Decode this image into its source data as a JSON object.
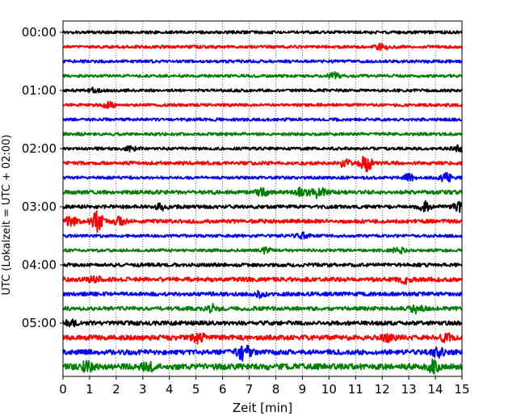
{
  "chart_data": {
    "type": "line",
    "title": "",
    "xlabel": "Zeit  [min]",
    "ylabel": "UTC (Lokalzeit = UTC + 02:00)",
    "xlim": [
      0,
      15
    ],
    "xticks": [
      0,
      1,
      2,
      3,
      4,
      5,
      6,
      7,
      8,
      9,
      10,
      11,
      12,
      13,
      14,
      15
    ],
    "ytick_labels": [
      "00:00",
      "01:00",
      "02:00",
      "03:00",
      "04:00",
      "05:00"
    ],
    "grid": "vertical dotted",
    "line_colors": [
      "#000000",
      "#ff0000",
      "#0000ff",
      "#008000"
    ],
    "series": [
      {
        "start": "00:00",
        "color": "#000000",
        "base_amplitude": 0.15,
        "events": []
      },
      {
        "start": "00:15",
        "color": "#ff0000",
        "base_amplitude": 0.15,
        "events": [
          [
            12.0,
            0.3
          ]
        ]
      },
      {
        "start": "00:30",
        "color": "#0000ff",
        "base_amplitude": 0.15,
        "events": []
      },
      {
        "start": "00:45",
        "color": "#008000",
        "base_amplitude": 0.15,
        "events": [
          [
            10.2,
            0.3
          ]
        ]
      },
      {
        "start": "01:00",
        "color": "#000000",
        "base_amplitude": 0.15,
        "events": [
          [
            1.2,
            0.25
          ]
        ]
      },
      {
        "start": "01:15",
        "color": "#ff0000",
        "base_amplitude": 0.15,
        "events": [
          [
            1.7,
            0.3
          ]
        ]
      },
      {
        "start": "01:30",
        "color": "#0000ff",
        "base_amplitude": 0.15,
        "events": []
      },
      {
        "start": "01:45",
        "color": "#008000",
        "base_amplitude": 0.15,
        "events": []
      },
      {
        "start": "02:00",
        "color": "#000000",
        "base_amplitude": 0.15,
        "events": [
          [
            2.6,
            0.25
          ],
          [
            14.9,
            0.3
          ]
        ]
      },
      {
        "start": "02:15",
        "color": "#ff0000",
        "base_amplitude": 0.18,
        "events": [
          [
            10.6,
            0.35
          ],
          [
            11.4,
            0.75
          ]
        ]
      },
      {
        "start": "02:30",
        "color": "#0000ff",
        "base_amplitude": 0.15,
        "events": [
          [
            13.0,
            0.3
          ],
          [
            14.4,
            0.4
          ]
        ]
      },
      {
        "start": "02:45",
        "color": "#008000",
        "base_amplitude": 0.2,
        "events": [
          [
            7.5,
            0.35
          ],
          [
            9.0,
            0.45
          ],
          [
            9.6,
            0.55
          ]
        ]
      },
      {
        "start": "03:00",
        "color": "#000000",
        "base_amplitude": 0.18,
        "events": [
          [
            3.7,
            0.25
          ],
          [
            13.6,
            0.45
          ],
          [
            14.9,
            0.45
          ]
        ]
      },
      {
        "start": "03:15",
        "color": "#ff0000",
        "base_amplitude": 0.2,
        "events": [
          [
            0.3,
            0.45
          ],
          [
            1.3,
            0.95
          ],
          [
            2.1,
            0.35
          ]
        ]
      },
      {
        "start": "03:30",
        "color": "#0000ff",
        "base_amplitude": 0.15,
        "events": [
          [
            9.0,
            0.3
          ]
        ]
      },
      {
        "start": "03:45",
        "color": "#008000",
        "base_amplitude": 0.15,
        "events": [
          [
            7.6,
            0.25
          ],
          [
            12.6,
            0.3
          ]
        ]
      },
      {
        "start": "04:00",
        "color": "#000000",
        "base_amplitude": 0.18,
        "events": []
      },
      {
        "start": "04:15",
        "color": "#ff0000",
        "base_amplitude": 0.22,
        "events": [
          [
            1.2,
            0.3
          ],
          [
            12.9,
            0.3
          ]
        ]
      },
      {
        "start": "04:30",
        "color": "#0000ff",
        "base_amplitude": 0.2,
        "events": [
          [
            7.4,
            0.3
          ]
        ]
      },
      {
        "start": "04:45",
        "color": "#008000",
        "base_amplitude": 0.2,
        "events": [
          [
            5.6,
            0.35
          ],
          [
            13.3,
            0.4
          ]
        ]
      },
      {
        "start": "05:00",
        "color": "#000000",
        "base_amplitude": 0.22,
        "events": [
          [
            0.3,
            0.25
          ]
        ]
      },
      {
        "start": "05:15",
        "color": "#ff0000",
        "base_amplitude": 0.25,
        "events": [
          [
            5.1,
            0.45
          ],
          [
            12.2,
            0.3
          ],
          [
            14.4,
            0.3
          ]
        ]
      },
      {
        "start": "05:30",
        "color": "#0000ff",
        "base_amplitude": 0.25,
        "events": [
          [
            6.8,
            0.8
          ],
          [
            14.1,
            0.45
          ]
        ]
      },
      {
        "start": "05:45",
        "color": "#008000",
        "base_amplitude": 0.3,
        "events": [
          [
            0.9,
            0.4
          ],
          [
            3.2,
            0.35
          ],
          [
            13.9,
            0.55
          ]
        ]
      }
    ]
  }
}
